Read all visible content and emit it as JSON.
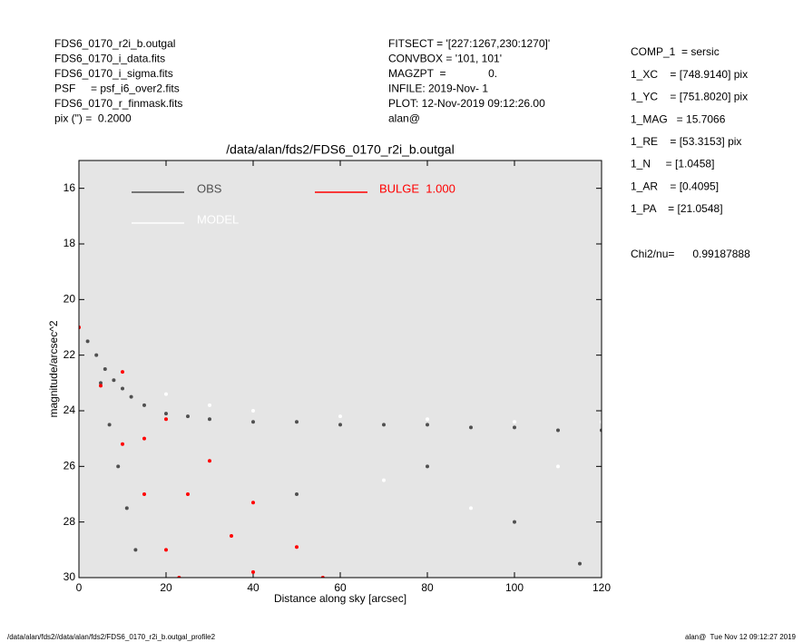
{
  "header": {
    "left": [
      "FDS6_0170_r2i_b.outgal",
      "FDS6_0170_i_data.fits",
      "FDS6_0170_i_sigma.fits",
      "PSF     = psf_i6_over2.fits",
      "FDS6_0170_r_finmask.fits",
      "pix (\") =  0.2000"
    ],
    "center": [
      "FITSECT = '[227:1267,230:1270]'",
      "CONVBOX = '101, 101'",
      "MAGZPT  =              0.",
      "INFILE: 2019-Nov- 1",
      "PLOT: 12-Nov-2019 09:12:26.00",
      "alan@"
    ],
    "right": [
      "COMP_1  = sersic",
      "1_XC    = [748.9140] pix",
      "1_YC    = [751.8020] pix",
      "1_MAG   = 15.7066",
      "1_RE    = [53.3153] pix",
      "1_N     = [1.0458]",
      "1_AR    = [0.4095]",
      "1_PA    = [21.0548]"
    ],
    "chi2": "Chi2/nu=      0.99187888"
  },
  "footer": {
    "left": "/data/alan/fds2//data/alan/fds2/FDS6_0170_r2i_b.outgal_profile2",
    "right": "alan@  Tue Nov 12 09:12:27 2019"
  },
  "chart_data": {
    "type": "scatter",
    "title": "/data/alan/fds2/FDS6_0170_r2i_b.outgal",
    "x_label": "Distance along sky [arcsec]",
    "y_label": "magnitude/arcsec^2",
    "xlim": [
      0,
      120
    ],
    "xticks": [
      0,
      20,
      40,
      60,
      80,
      100,
      120
    ],
    "ylim": [
      30,
      15
    ],
    "yticks": [
      16,
      18,
      20,
      22,
      24,
      26,
      28,
      30
    ],
    "background": "#e5e5e5",
    "series": [
      {
        "name": "OBS",
        "color": "#505050",
        "x": [
          0,
          2,
          4,
          6,
          8,
          10,
          12,
          15,
          20,
          25,
          30,
          40,
          50,
          60,
          70,
          80,
          90,
          100,
          110,
          120,
          5,
          7,
          9,
          11,
          13,
          50,
          80,
          100,
          115
        ],
        "values": [
          21.0,
          21.5,
          22.0,
          22.5,
          22.9,
          23.2,
          23.5,
          23.8,
          24.1,
          24.2,
          24.3,
          24.4,
          24.4,
          24.5,
          24.5,
          24.5,
          24.6,
          24.6,
          24.7,
          24.7,
          23.0,
          24.5,
          26.0,
          27.5,
          29.0,
          27.0,
          26.0,
          28.0,
          29.5
        ]
      },
      {
        "name": "MODEL",
        "color": "#ffffff",
        "x": [
          0,
          10,
          20,
          30,
          40,
          60,
          80,
          100,
          120,
          70,
          90,
          110
        ],
        "values": [
          21.0,
          22.6,
          23.4,
          23.8,
          24.0,
          24.2,
          24.3,
          24.4,
          24.4,
          26.5,
          27.5,
          26.0
        ]
      },
      {
        "name": "BULGE  1.000",
        "color": "#ff0000",
        "x": [
          0,
          5,
          10,
          15,
          20,
          23,
          10,
          20,
          30,
          40,
          50,
          56,
          15,
          25,
          35,
          40
        ],
        "values": [
          21.0,
          23.1,
          25.2,
          27.0,
          29.0,
          30.0,
          22.6,
          24.3,
          25.8,
          27.3,
          28.9,
          30.0,
          25.0,
          27.0,
          28.5,
          29.8
        ]
      }
    ]
  }
}
